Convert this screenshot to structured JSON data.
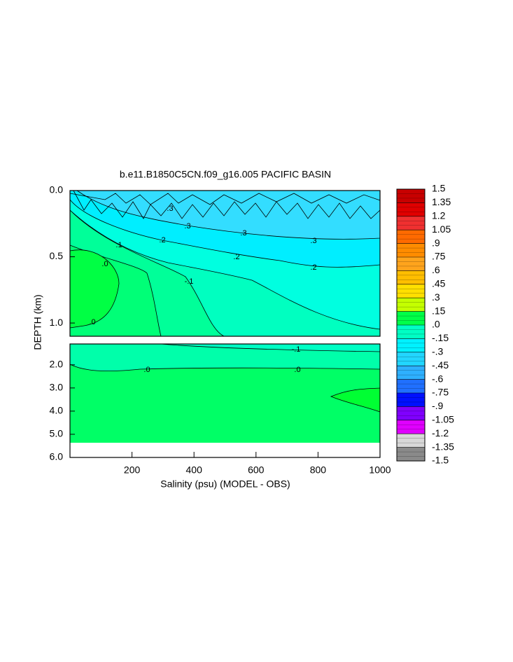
{
  "chart_data": {
    "type": "contour",
    "title": "b.e11.B1850C5CN.f09_g16.005 PACIFIC BASIN",
    "x_label": "Salinity (psu) (MODEL - OBS)",
    "y_label": "DEPTH (km)",
    "xlim": [
      0,
      1000
    ],
    "xticks": [
      200,
      400,
      600,
      800,
      1000
    ],
    "panels": [
      {
        "ylim": [
          0,
          1.1
        ],
        "yticks": [
          {
            "value": 0,
            "label": "0.0"
          },
          {
            "value": 0.5,
            "label": "0.5"
          },
          {
            "value": 1,
            "label": "1.0"
          }
        ]
      },
      {
        "ylim": [
          1.1,
          6
        ],
        "yticks": [
          {
            "value": 2,
            "label": "2.0"
          },
          {
            "value": 3,
            "label": "3.0"
          },
          {
            "value": 4,
            "label": "4.0"
          },
          {
            "value": 5,
            "label": "5.0"
          },
          {
            "value": 6,
            "label": "6.0"
          }
        ]
      }
    ],
    "contour_labels": [
      ".3",
      ".3",
      ".3",
      ".3",
      ".2",
      ".2",
      ".2",
      ".1",
      "-.1",
      ".0",
      ".0",
      "-.1",
      ".0",
      ".0"
    ],
    "colorbar": {
      "lim": [
        -1.5,
        1.5
      ],
      "ticks": [
        1.5,
        1.35,
        1.2,
        1.05,
        {
          "value": 0.9,
          "label": ".9"
        },
        {
          "value": 0.75,
          "label": ".75"
        },
        {
          "value": 0.6,
          "label": ".6"
        },
        {
          "value": 0.45,
          "label": ".45"
        },
        {
          "value": 0.3,
          "label": ".3"
        },
        {
          "value": 0.15,
          "label": ".15"
        },
        {
          "value": 0,
          "label": ".0"
        },
        {
          "value": -0.15,
          "label": "-.15"
        },
        {
          "value": -0.3,
          "label": "-.3"
        },
        {
          "value": -0.45,
          "label": "-.45"
        },
        {
          "value": -0.6,
          "label": "-.6"
        },
        {
          "value": -0.75,
          "label": "-.75"
        },
        {
          "value": -0.9,
          "label": "-.9"
        },
        -1.05,
        -1.2,
        -1.35,
        -1.5
      ],
      "colors": [
        "#c80000",
        "#e00000",
        "#f03030",
        "#ff6a00",
        "#ff8c00",
        "#ffa41c",
        "#ffbe00",
        "#ffdf00",
        "#c4ff00",
        "#00ff48",
        "#00ffc4",
        "#00f2ff",
        "#22d6ff",
        "#2eb0ff",
        "#2070ff",
        "#0010ff",
        "#8000ff",
        "#e000ff",
        "#d8d8d8",
        "#8a8a8a"
      ]
    }
  }
}
